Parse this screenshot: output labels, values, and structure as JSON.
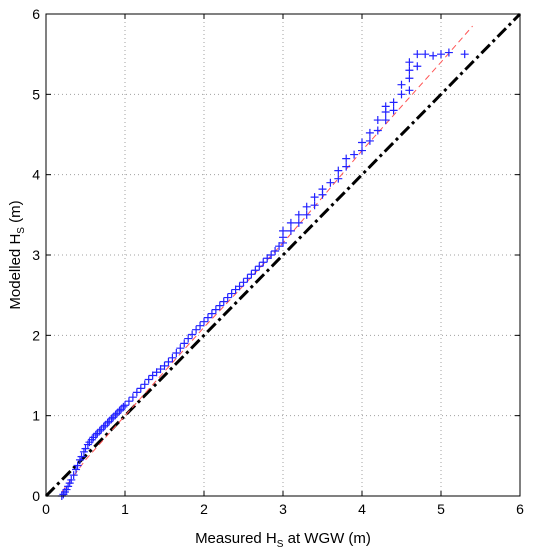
{
  "chart_data": {
    "type": "scatter",
    "xlabel": {
      "main": "Measured H",
      "sub": "S",
      "rest": " at WGW (m)"
    },
    "ylabel": {
      "main": "Modelled H",
      "sub": "S",
      "rest": "  (m)"
    },
    "xlim": [
      0,
      6
    ],
    "ylim": [
      0,
      6
    ],
    "x_ticks": [
      "0",
      "1",
      "2",
      "3",
      "4",
      "5",
      "6"
    ],
    "y_ticks": [
      "0",
      "1",
      "2",
      "3",
      "4",
      "5",
      "6"
    ],
    "grid": true,
    "legend": "none",
    "colors": {
      "scatter": "#2222ff",
      "fit": "#ff5555",
      "reference": "#000000",
      "grid": "#a0a0a0"
    },
    "reference_line": {
      "style": "dash-dot",
      "x": [
        0,
        6
      ],
      "y": [
        0,
        6
      ]
    },
    "fit_line": {
      "style": "dashed",
      "x": [
        0.2,
        0.5,
        1.0,
        1.5,
        2.0,
        2.5,
        3.0,
        3.5,
        4.0,
        4.5,
        5.0,
        5.4
      ],
      "y": [
        0.05,
        0.45,
        1.0,
        1.55,
        2.1,
        2.62,
        3.15,
        3.72,
        4.3,
        4.85,
        5.4,
        5.85
      ]
    },
    "series": [
      {
        "marker": "+",
        "x": [
          0.2,
          0.22,
          0.24,
          0.26,
          0.28,
          0.3,
          0.32,
          0.35,
          0.38,
          0.4,
          0.43,
          0.45,
          0.48,
          0.5,
          0.53,
          0.55,
          0.58,
          0.6,
          0.63,
          0.65,
          0.68,
          0.7,
          0.73,
          0.75,
          0.78,
          0.8,
          0.83,
          0.85,
          0.88,
          0.9,
          0.93,
          0.95,
          0.98,
          1.0,
          1.05,
          1.1,
          1.15,
          1.2,
          1.25,
          1.3,
          1.35,
          1.4,
          1.45,
          1.5,
          1.55,
          1.6,
          1.65,
          1.7,
          1.75,
          1.8,
          1.85,
          1.9,
          1.95,
          2.0,
          2.05,
          2.1,
          2.15,
          2.2,
          2.25,
          2.3,
          2.35,
          2.4,
          2.45,
          2.5,
          2.55,
          2.6,
          2.65,
          2.7,
          2.75,
          2.8,
          2.85,
          2.9,
          2.95,
          3.0,
          3.0,
          3.0,
          3.1,
          3.1,
          3.2,
          3.2,
          3.3,
          3.3,
          3.4,
          3.4,
          3.5,
          3.5,
          3.6,
          3.7,
          3.7,
          3.8,
          3.8,
          3.9,
          4.0,
          4.0,
          4.1,
          4.1,
          4.2,
          4.2,
          4.3,
          4.3,
          4.3,
          4.4,
          4.4,
          4.5,
          4.5,
          4.6,
          4.6,
          4.6,
          4.6,
          4.7,
          4.7,
          4.8,
          4.9,
          5.0,
          5.1,
          5.3
        ],
        "y": [
          0.0,
          0.02,
          0.05,
          0.08,
          0.12,
          0.16,
          0.2,
          0.26,
          0.33,
          0.38,
          0.45,
          0.49,
          0.55,
          0.59,
          0.64,
          0.67,
          0.7,
          0.73,
          0.76,
          0.78,
          0.81,
          0.83,
          0.86,
          0.88,
          0.91,
          0.93,
          0.96,
          0.98,
          1.01,
          1.03,
          1.06,
          1.08,
          1.11,
          1.13,
          1.18,
          1.23,
          1.29,
          1.34,
          1.39,
          1.45,
          1.5,
          1.54,
          1.58,
          1.62,
          1.67,
          1.72,
          1.78,
          1.84,
          1.9,
          1.96,
          2.01,
          2.07,
          2.12,
          2.17,
          2.22,
          2.27,
          2.32,
          2.37,
          2.42,
          2.47,
          2.52,
          2.57,
          2.61,
          2.66,
          2.71,
          2.76,
          2.81,
          2.86,
          2.91,
          2.96,
          3.0,
          3.05,
          3.11,
          3.15,
          3.22,
          3.3,
          3.3,
          3.4,
          3.4,
          3.5,
          3.5,
          3.6,
          3.62,
          3.72,
          3.75,
          3.82,
          3.9,
          3.95,
          4.05,
          4.1,
          4.2,
          4.25,
          4.3,
          4.4,
          4.42,
          4.52,
          4.55,
          4.68,
          4.68,
          4.78,
          4.85,
          4.8,
          4.9,
          5.0,
          5.12,
          5.05,
          5.2,
          5.3,
          5.4,
          5.35,
          5.5,
          5.5,
          5.48,
          5.5,
          5.52,
          5.5
        ]
      }
    ]
  }
}
